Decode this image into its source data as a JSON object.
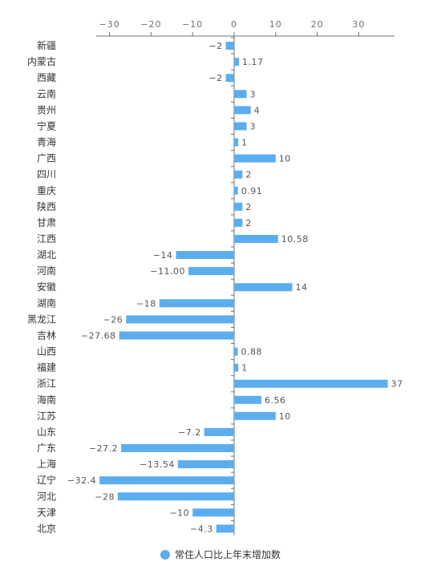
{
  "chart_data": {
    "type": "bar",
    "orientation": "horizontal",
    "categories": [
      "新疆",
      "内蒙古",
      "西藏",
      "云南",
      "贵州",
      "宁夏",
      "青海",
      "广西",
      "四川",
      "重庆",
      "陕西",
      "甘肃",
      "江西",
      "湖北",
      "河南",
      "安徽",
      "湖南",
      "黑龙江",
      "吉林",
      "山西",
      "福建",
      "浙江",
      "海南",
      "江苏",
      "山东",
      "广东",
      "上海",
      "辽宁",
      "河北",
      "天津",
      "北京"
    ],
    "series": [
      {
        "name": "常住人口比上年末增加数",
        "values": [
          -2,
          1.17,
          -2,
          3,
          4,
          3,
          1,
          10,
          2,
          0.91,
          2,
          2,
          10.58,
          -14,
          -11.0,
          14,
          -18,
          -26,
          -27.68,
          0.88,
          1,
          37,
          6.56,
          10,
          -7.2,
          -27.2,
          -13.54,
          -32.4,
          -28,
          -10,
          -4.3
        ],
        "labels": [
          "−2",
          "1.17",
          "−2",
          "3",
          "4",
          "3",
          "1",
          "10",
          "2",
          "0.91",
          "2",
          "2",
          "10.58",
          "−14",
          "−11.00",
          "14",
          "−18",
          "−26",
          "−27.68",
          "0.88",
          "1",
          "37",
          "6.56",
          "10",
          "−7.2",
          "−27.2",
          "−13.54",
          "−32.4",
          "−28",
          "−10",
          "−4.3"
        ],
        "color": "#5aaef0"
      }
    ],
    "x_ticks": [
      "−30",
      "−20",
      "−10",
      "0",
      "10",
      "20",
      "30"
    ],
    "x_tick_values": [
      -30,
      -20,
      -10,
      0,
      10,
      20,
      30
    ],
    "xlim": [
      -33.3,
      38.3
    ],
    "x_axis_position": "top",
    "grid": false,
    "legend_position": "bottom-center"
  }
}
